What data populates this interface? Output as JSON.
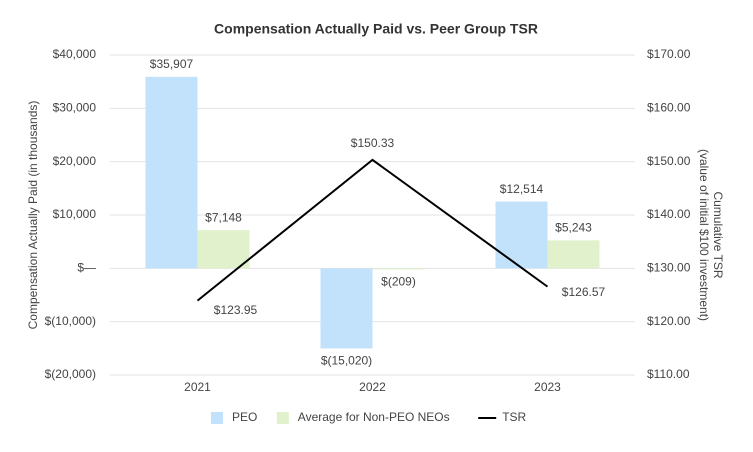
{
  "chart_data": {
    "type": "bar",
    "title": "Compensation Actually Paid vs. Peer Group TSR",
    "y_label": "Compensation Actually Paid (in thousands)",
    "y2_label": [
      "Cumulative TSR",
      "(value of initial $100 investment)"
    ],
    "categories": [
      "2021",
      "2022",
      "2023"
    ],
    "ylim": [
      -20000,
      40000
    ],
    "yticks": [
      {
        "value": 40000,
        "label": "$40,000"
      },
      {
        "value": 30000,
        "label": "$30,000"
      },
      {
        "value": 20000,
        "label": "$20,000"
      },
      {
        "value": 10000,
        "label": "$10,000"
      },
      {
        "value": 0,
        "label": "$—"
      },
      {
        "value": -10000,
        "label": "$(10,000)"
      },
      {
        "value": -20000,
        "label": "$(20,000)"
      }
    ],
    "y2lim": [
      110,
      170
    ],
    "y2ticks": [
      {
        "value": 170,
        "label": "$170.00"
      },
      {
        "value": 160,
        "label": "$160.00"
      },
      {
        "value": 150,
        "label": "$150.00"
      },
      {
        "value": 140,
        "label": "$140.00"
      },
      {
        "value": 130,
        "label": "$130.00"
      },
      {
        "value": 120,
        "label": "$120.00"
      },
      {
        "value": 110,
        "label": "$110.00"
      }
    ],
    "grid": true,
    "series": [
      {
        "name": "PEO",
        "type": "bar",
        "color": "#c2e2fb",
        "values": [
          35907,
          -15020,
          12514
        ],
        "value_labels": [
          "$35,907",
          "$(15,020)",
          "$12,514"
        ]
      },
      {
        "name": "Average for Non-PEO NEOs",
        "type": "bar",
        "color": "#e0f1cc",
        "values": [
          7148,
          -209,
          5243
        ],
        "value_labels": [
          "$7,148",
          "$(209)",
          "$5,243"
        ]
      },
      {
        "name": "TSR",
        "type": "line",
        "axis": "y2",
        "color": "#000000",
        "values": [
          123.95,
          150.33,
          126.57
        ],
        "value_labels": [
          "$123.95",
          "$150.33",
          "$126.57"
        ]
      }
    ]
  }
}
